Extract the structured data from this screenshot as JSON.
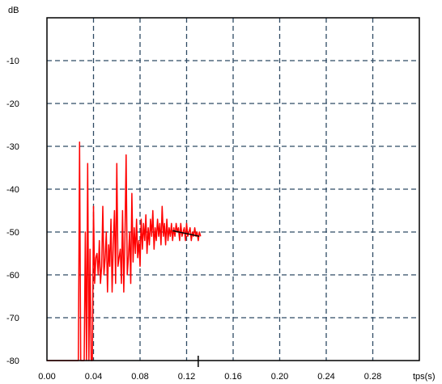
{
  "chart_data": {
    "type": "line",
    "title": "",
    "xlabel": "tps(s)",
    "ylabel": "dB",
    "xlim": [
      0,
      0.32
    ],
    "ylim": [
      -80,
      0
    ],
    "xticks": [
      "0.00",
      "0.04",
      "0.08",
      "0.12",
      "0.16",
      "0.20",
      "0.24",
      "0.28"
    ],
    "xtick_values": [
      0,
      0.04,
      0.08,
      0.12,
      0.16,
      0.2,
      0.24,
      0.28
    ],
    "yticks": [
      "-10",
      "-20",
      "-30",
      "-40",
      "-50",
      "-60",
      "-70",
      "-80"
    ],
    "ytick_values": [
      -10,
      -20,
      -30,
      -40,
      -50,
      -60,
      -70,
      -80
    ],
    "grid": true,
    "colors": {
      "series": "#ff0000",
      "fit_line": "#000000",
      "grid": "#2e4a63"
    },
    "series": [
      {
        "x": [
          0.0,
          0.024,
          0.025,
          0.026,
          0.027,
          0.028,
          0.029,
          0.03,
          0.031,
          0.032,
          0.033,
          0.034,
          0.035,
          0.036,
          0.037,
          0.038,
          0.039,
          0.04,
          0.041,
          0.042,
          0.043,
          0.044,
          0.045,
          0.046,
          0.047,
          0.048,
          0.049,
          0.05,
          0.051,
          0.052,
          0.053,
          0.054,
          0.055,
          0.056,
          0.057,
          0.058,
          0.059,
          0.06,
          0.061,
          0.062,
          0.063,
          0.064,
          0.065,
          0.066,
          0.067,
          0.068,
          0.069,
          0.07,
          0.071,
          0.072,
          0.073,
          0.074,
          0.075,
          0.076,
          0.077,
          0.078,
          0.079,
          0.08,
          0.081,
          0.082,
          0.083,
          0.084,
          0.085,
          0.086,
          0.087,
          0.088,
          0.089,
          0.09,
          0.091,
          0.092,
          0.093,
          0.094,
          0.095,
          0.096,
          0.097,
          0.098,
          0.099,
          0.1,
          0.101,
          0.102,
          0.103,
          0.104,
          0.105,
          0.106,
          0.107,
          0.108,
          0.109,
          0.11,
          0.111,
          0.112,
          0.113,
          0.114,
          0.115,
          0.116,
          0.117,
          0.118,
          0.119,
          0.12,
          0.121,
          0.122,
          0.123,
          0.124,
          0.125,
          0.126,
          0.127,
          0.128,
          0.129,
          0.13,
          0.131,
          0.132
        ],
        "y": [
          -80,
          -80,
          -80,
          -80,
          -80,
          -29,
          -80,
          -80,
          -80,
          -80,
          -50,
          -80,
          -34,
          -80,
          -54,
          -80,
          -80,
          -44,
          -62,
          -56,
          -55,
          -60,
          -52,
          -62,
          -58,
          -44,
          -60,
          -56,
          -50,
          -64,
          -53,
          -58,
          -47,
          -64,
          -53,
          -45,
          -62,
          -34,
          -58,
          -56,
          -54,
          -62,
          -45,
          -64,
          -52,
          -32,
          -60,
          -56,
          -50,
          -62,
          -41,
          -57,
          -49,
          -55,
          -47,
          -56,
          -52,
          -58,
          -47,
          -54,
          -48,
          -52,
          -46,
          -55,
          -49,
          -53,
          -47,
          -51,
          -45,
          -54,
          -49,
          -52,
          -47,
          -51,
          -48,
          -53,
          -44,
          -51,
          -48,
          -53,
          -47,
          -52,
          -49,
          -51,
          -48,
          -52,
          -49,
          -51,
          -48,
          -50,
          -49,
          -52,
          -48,
          -51,
          -50,
          -49,
          -52,
          -48,
          -51,
          -50,
          -49,
          -52,
          -50,
          -51,
          -49,
          -51,
          -50,
          -52,
          -50,
          -51
        ]
      }
    ],
    "fit_line": {
      "x": [
        0.108,
        0.131
      ],
      "y": [
        -49.7,
        -51.0
      ]
    },
    "marker": {
      "x": 0.13
    }
  }
}
